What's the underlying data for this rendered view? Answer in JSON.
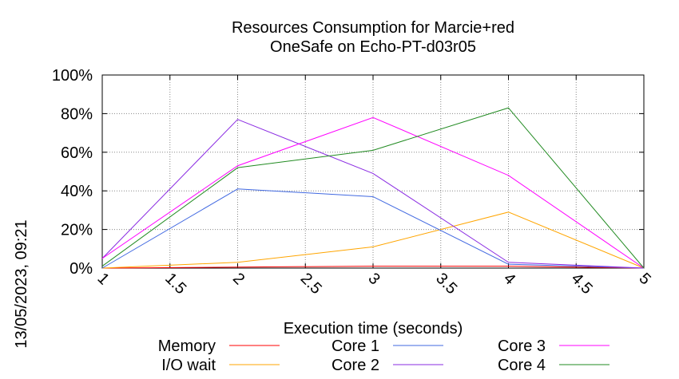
{
  "chart_data": {
    "type": "line",
    "title": "Resources Consumption for Marcie+red",
    "subtitle": "OneSafe on Echo-PT-d03r05",
    "xlabel": "Execution time (seconds)",
    "ylabel": "",
    "side_label": "13/05/2023, 09:21",
    "xlim": [
      1,
      5
    ],
    "ylim": [
      0,
      100
    ],
    "grid": true,
    "legend_position": "bottom",
    "x_ticks": [
      "1",
      "1.5",
      "2",
      "2.5",
      "3",
      "3.5",
      "4",
      "4.5",
      "5"
    ],
    "y_ticks": [
      "0%",
      "20%",
      "40%",
      "60%",
      "80%",
      "100%"
    ],
    "x": [
      1,
      2,
      3,
      4,
      5
    ],
    "series": [
      {
        "name": "Memory",
        "color": "#ff0000",
        "values": [
          0,
          0.5,
          1,
          1,
          0
        ]
      },
      {
        "name": "I/O wait",
        "color": "#ffa500",
        "values": [
          0,
          3,
          11,
          29,
          0
        ]
      },
      {
        "name": "Core 1",
        "color": "#4169e1",
        "values": [
          0,
          41,
          37,
          2,
          0
        ]
      },
      {
        "name": "Core 2",
        "color": "#8a2be2",
        "values": [
          5,
          77,
          49,
          3,
          0
        ]
      },
      {
        "name": "Core 3",
        "color": "#ff00ff",
        "values": [
          5,
          53,
          78,
          48,
          0
        ]
      },
      {
        "name": "Core 4",
        "color": "#228b22",
        "values": [
          1,
          52,
          61,
          83,
          0
        ]
      }
    ]
  }
}
